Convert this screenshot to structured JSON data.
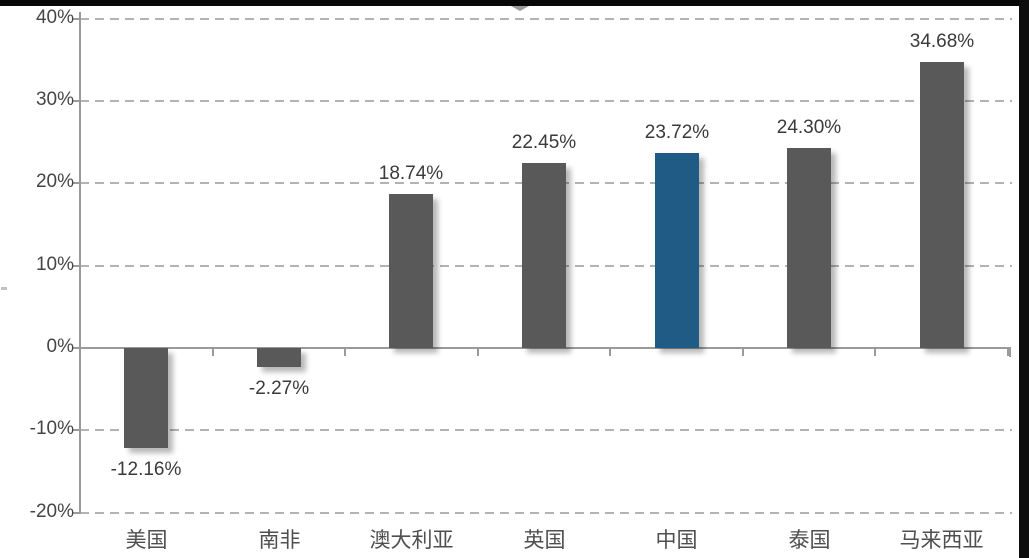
{
  "chart_data": {
    "type": "bar",
    "title": "",
    "categories": [
      "美国",
      "南非",
      "澳大利亚",
      "英国",
      "中国",
      "泰国",
      "马来西亚"
    ],
    "values": [
      -12.16,
      -2.27,
      18.74,
      22.45,
      23.72,
      24.3,
      34.68
    ],
    "value_labels": [
      "-12.16%",
      "-2.27%",
      "18.74%",
      "22.45%",
      "23.72%",
      "24.30%",
      "34.68%"
    ],
    "highlight_index": 4,
    "highlight_category": "中国",
    "y_ticks": [
      {
        "label": "40%",
        "value": 40
      },
      {
        "label": "30%",
        "value": 30
      },
      {
        "label": "20%",
        "value": 20
      },
      {
        "label": "10%",
        "value": 10
      },
      {
        "label": "0%",
        "value": 0
      },
      {
        "label": "-10%",
        "value": -10
      },
      {
        "label": "-20%",
        "value": -20
      }
    ],
    "ylim": [
      -20,
      40
    ],
    "xlabel": "",
    "ylabel": "",
    "legend": "none",
    "grid": "horizontal-dashed",
    "colors": {
      "bar": "#595959",
      "highlight_bar": "#1f5b84",
      "gridline": "#b3b3b3",
      "axis": "#9a9a9a",
      "value_label_text": "#3a3a3a",
      "category_label_text": "#4f4f4f",
      "y_label_text": "#454545",
      "frame_border": "#0d0d0d"
    }
  }
}
